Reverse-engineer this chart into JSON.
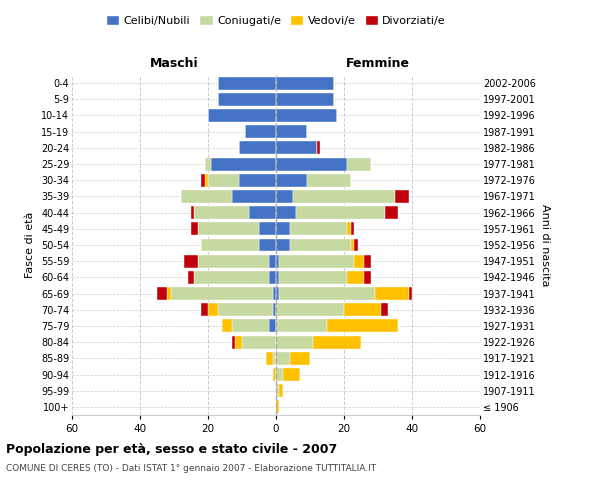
{
  "age_groups": [
    "100+",
    "95-99",
    "90-94",
    "85-89",
    "80-84",
    "75-79",
    "70-74",
    "65-69",
    "60-64",
    "55-59",
    "50-54",
    "45-49",
    "40-44",
    "35-39",
    "30-34",
    "25-29",
    "20-24",
    "15-19",
    "10-14",
    "5-9",
    "0-4"
  ],
  "birth_years": [
    "≤ 1906",
    "1907-1911",
    "1912-1916",
    "1917-1921",
    "1922-1926",
    "1927-1931",
    "1932-1936",
    "1937-1941",
    "1942-1946",
    "1947-1951",
    "1952-1956",
    "1957-1961",
    "1962-1966",
    "1967-1971",
    "1972-1976",
    "1977-1981",
    "1982-1986",
    "1987-1991",
    "1992-1996",
    "1997-2001",
    "2002-2006"
  ],
  "colors": {
    "celibi": "#4472c4",
    "coniugati": "#c5d9a0",
    "vedovi": "#ffc000",
    "divorziati": "#c0000c"
  },
  "maschi": {
    "celibi": [
      0,
      0,
      0,
      0,
      0,
      2,
      1,
      1,
      2,
      2,
      5,
      5,
      8,
      13,
      11,
      19,
      11,
      9,
      20,
      17,
      17
    ],
    "coniugati": [
      0,
      0,
      0,
      1,
      10,
      11,
      16,
      30,
      22,
      21,
      17,
      18,
      16,
      15,
      9,
      2,
      0,
      0,
      0,
      0,
      0
    ],
    "vedovi": [
      0,
      0,
      1,
      2,
      2,
      3,
      3,
      1,
      0,
      0,
      0,
      0,
      0,
      0,
      1,
      0,
      0,
      0,
      0,
      0,
      0
    ],
    "divorziati": [
      0,
      0,
      0,
      0,
      1,
      0,
      2,
      3,
      2,
      4,
      0,
      2,
      1,
      0,
      1,
      0,
      0,
      0,
      0,
      0,
      0
    ]
  },
  "femmine": {
    "celibi": [
      0,
      0,
      0,
      0,
      0,
      0,
      0,
      1,
      1,
      1,
      4,
      4,
      6,
      5,
      9,
      21,
      12,
      9,
      18,
      17,
      17
    ],
    "coniugati": [
      0,
      1,
      2,
      4,
      11,
      15,
      20,
      28,
      20,
      22,
      18,
      17,
      26,
      30,
      13,
      7,
      0,
      0,
      0,
      0,
      0
    ],
    "vedovi": [
      1,
      1,
      5,
      6,
      14,
      21,
      11,
      10,
      5,
      3,
      1,
      1,
      0,
      0,
      0,
      0,
      0,
      0,
      0,
      0,
      0
    ],
    "divorziati": [
      0,
      0,
      0,
      0,
      0,
      0,
      2,
      1,
      2,
      2,
      1,
      1,
      4,
      4,
      0,
      0,
      1,
      0,
      0,
      0,
      0
    ]
  },
  "xlim": 60,
  "title": "Popolazione per età, sesso e stato civile - 2007",
  "subtitle": "COMUNE DI CERES (TO) - Dati ISTAT 1° gennaio 2007 - Elaborazione TUTTITALIA.IT",
  "ylabel_left": "Fasce di età",
  "ylabel_right": "Anni di nascita",
  "header_left": "Maschi",
  "header_right": "Femmine",
  "legend_labels": [
    "Celibi/Nubili",
    "Coniugati/e",
    "Vedovi/e",
    "Divorziati/e"
  ],
  "bg_color": "#ffffff",
  "grid_color": "#cccccc",
  "bar_edge_color": "white",
  "bar_linewidth": 0.3
}
